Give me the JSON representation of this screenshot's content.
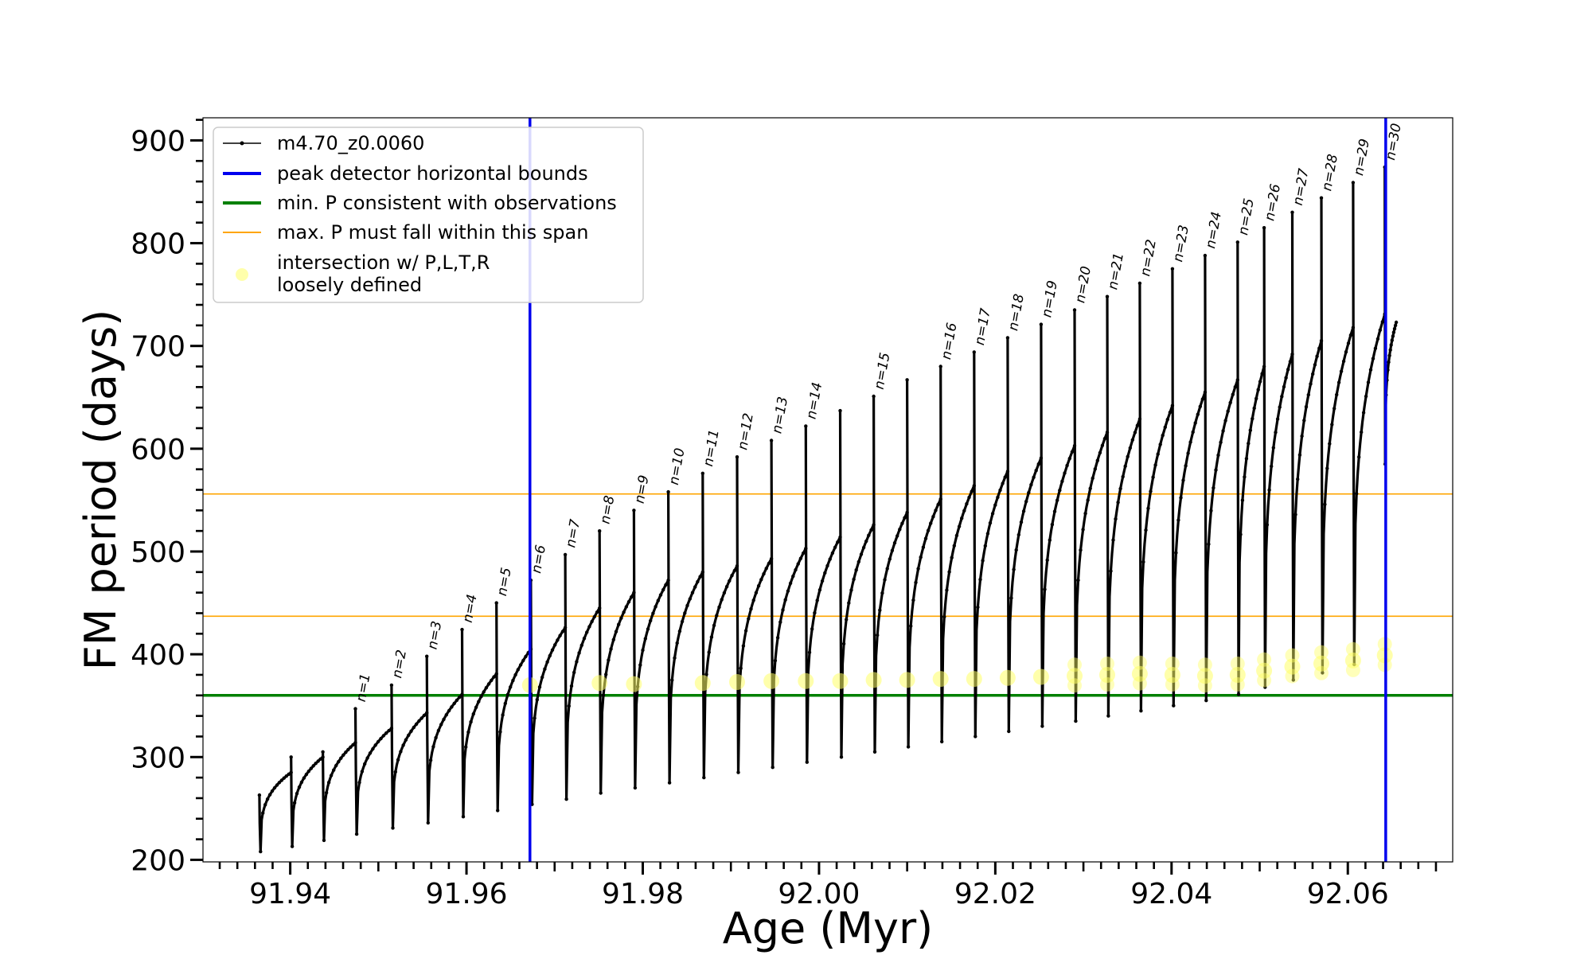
{
  "chart_data": {
    "type": "line",
    "xlabel": "Age (Myr)",
    "ylabel": "FM period (days)",
    "xlim": [
      91.9301,
      92.0719
    ],
    "ylim": [
      198,
      922
    ],
    "xticks": [
      91.94,
      91.96,
      91.98,
      92.0,
      92.02,
      92.04,
      92.06
    ],
    "xtick_labels": [
      "91.94",
      "91.96",
      "91.98",
      "92.00",
      "92.02",
      "92.04",
      "92.06"
    ],
    "yticks": [
      200,
      300,
      400,
      500,
      600,
      700,
      800,
      900
    ],
    "ytick_labels": [
      "200",
      "300",
      "400",
      "500",
      "600",
      "700",
      "800",
      "900"
    ],
    "grid": false,
    "legend_position": "top-left",
    "legend": [
      {
        "label": "m4.70_z0.0060",
        "color": "#000000",
        "kind": "line-marker"
      },
      {
        "label": "peak detector horizontal bounds",
        "color": "#0000ee",
        "kind": "line"
      },
      {
        "label": "min. P consistent with observations",
        "color": "#008000",
        "kind": "line"
      },
      {
        "label": "max. P must fall within this span",
        "color": "#ffa500",
        "kind": "line"
      },
      {
        "label": "intersection w/ P,L,T,R",
        "label2": "loosely defined",
        "color": "#ffff66",
        "kind": "marker"
      }
    ],
    "vertical_lines": {
      "color": "#0000ee",
      "x": [
        91.9672,
        92.0643
      ]
    },
    "horizontal_lines": [
      {
        "y": 360,
        "color": "#008000"
      },
      {
        "y": 437,
        "color": "#ffa500"
      },
      {
        "y": 556,
        "color": "#ffa500"
      }
    ],
    "series": [
      {
        "name": "m4.70_z0.0060",
        "color": "#000000",
        "pulses": [
          {
            "label": "",
            "t0": 91.9365,
            "t1": 91.9401,
            "spike": 263,
            "dip": 208,
            "plateau": 285
          },
          {
            "label": "",
            "t0": 91.9401,
            "t1": 91.9437,
            "spike": 300,
            "dip": 213,
            "plateau": 300
          },
          {
            "label": "",
            "t0": 91.9437,
            "t1": 91.9474,
            "spike": 305,
            "dip": 219,
            "plateau": 314
          },
          {
            "label": "n=1",
            "t0": 91.9474,
            "t1": 91.9515,
            "spike": 347,
            "dip": 225,
            "plateau": 328
          },
          {
            "label": "n=2",
            "t0": 91.9515,
            "t1": 91.9555,
            "spike": 370,
            "dip": 231,
            "plateau": 343
          },
          {
            "label": "n=3",
            "t0": 91.9555,
            "t1": 91.9595,
            "spike": 398,
            "dip": 236,
            "plateau": 361
          },
          {
            "label": "n=4",
            "t0": 91.9595,
            "t1": 91.9634,
            "spike": 424,
            "dip": 242,
            "plateau": 381
          },
          {
            "label": "n=5",
            "t0": 91.9634,
            "t1": 91.9673,
            "spike": 450,
            "dip": 248,
            "plateau": 405
          },
          {
            "label": "n=6",
            "t0": 91.9673,
            "t1": 91.9712,
            "spike": 472,
            "dip": 254,
            "plateau": 426
          },
          {
            "label": "n=7",
            "t0": 91.9712,
            "t1": 91.9751,
            "spike": 497,
            "dip": 259,
            "plateau": 445
          },
          {
            "label": "n=8",
            "t0": 91.9751,
            "t1": 91.979,
            "spike": 520,
            "dip": 265,
            "plateau": 460
          },
          {
            "label": "n=9",
            "t0": 91.979,
            "t1": 91.9829,
            "spike": 540,
            "dip": 270,
            "plateau": 472
          },
          {
            "label": "n=10",
            "t0": 91.9829,
            "t1": 91.9868,
            "spike": 558,
            "dip": 275,
            "plateau": 480
          },
          {
            "label": "n=11",
            "t0": 91.9868,
            "t1": 91.9907,
            "spike": 576,
            "dip": 280,
            "plateau": 486
          },
          {
            "label": "n=12",
            "t0": 91.9907,
            "t1": 91.9946,
            "spike": 592,
            "dip": 285,
            "plateau": 493
          },
          {
            "label": "n=13",
            "t0": 91.9946,
            "t1": 91.9985,
            "spike": 608,
            "dip": 290,
            "plateau": 503
          },
          {
            "label": "n=14",
            "t0": 91.9985,
            "t1": 92.0024,
            "spike": 622,
            "dip": 295,
            "plateau": 514
          },
          {
            "label": "",
            "t0": 92.0024,
            "t1": 92.0062,
            "spike": 637,
            "dip": 300,
            "plateau": 526
          },
          {
            "label": "n=15",
            "t0": 92.0062,
            "t1": 92.01,
            "spike": 651,
            "dip": 305,
            "plateau": 538
          },
          {
            "label": "",
            "t0": 92.01,
            "t1": 92.0138,
            "spike": 667,
            "dip": 310,
            "plateau": 551
          },
          {
            "label": "n=16",
            "t0": 92.0138,
            "t1": 92.0176,
            "spike": 680,
            "dip": 315,
            "plateau": 564
          },
          {
            "label": "n=17",
            "t0": 92.0176,
            "t1": 92.0214,
            "spike": 694,
            "dip": 320,
            "plateau": 578
          },
          {
            "label": "n=18",
            "t0": 92.0214,
            "t1": 92.0252,
            "spike": 708,
            "dip": 325,
            "plateau": 591
          },
          {
            "label": "n=19",
            "t0": 92.0252,
            "t1": 92.029,
            "spike": 721,
            "dip": 330,
            "plateau": 603
          },
          {
            "label": "n=20",
            "t0": 92.029,
            "t1": 92.0327,
            "spike": 735,
            "dip": 335,
            "plateau": 616
          },
          {
            "label": "n=21",
            "t0": 92.0327,
            "t1": 92.0364,
            "spike": 748,
            "dip": 340,
            "plateau": 629
          },
          {
            "label": "n=22",
            "t0": 92.0364,
            "t1": 92.0401,
            "spike": 761,
            "dip": 345,
            "plateau": 642
          },
          {
            "label": "n=23",
            "t0": 92.0401,
            "t1": 92.0438,
            "spike": 775,
            "dip": 350,
            "plateau": 655
          },
          {
            "label": "n=24",
            "t0": 92.0438,
            "t1": 92.0475,
            "spike": 788,
            "dip": 355,
            "plateau": 667
          },
          {
            "label": "n=25",
            "t0": 92.0475,
            "t1": 92.0505,
            "spike": 801,
            "dip": 361,
            "plateau": 680
          },
          {
            "label": "n=26",
            "t0": 92.0505,
            "t1": 92.0537,
            "spike": 815,
            "dip": 368,
            "plateau": 692
          },
          {
            "label": "n=27",
            "t0": 92.0537,
            "t1": 92.057,
            "spike": 830,
            "dip": 375,
            "plateau": 705
          },
          {
            "label": "n=28",
            "t0": 92.057,
            "t1": 92.0606,
            "spike": 844,
            "dip": 382,
            "plateau": 718
          },
          {
            "label": "n=29",
            "t0": 92.0606,
            "t1": 92.0642,
            "spike": 859,
            "dip": 390,
            "plateau": 731
          },
          {
            "label": "n=30",
            "t0": 92.0642,
            "t1": 92.0655,
            "spike": 874,
            "dip": 585,
            "plateau": 723
          }
        ]
      },
      {
        "name": "intersection w/ P,L,T,R loosely defined",
        "color": "#ffff66",
        "points": [
          [
            91.9672,
            370
          ],
          [
            91.9751,
            372
          ],
          [
            91.979,
            371
          ],
          [
            91.9868,
            372
          ],
          [
            91.9907,
            373
          ],
          [
            91.9946,
            374
          ],
          [
            91.9985,
            374
          ],
          [
            92.0024,
            374
          ],
          [
            92.0062,
            375
          ],
          [
            92.01,
            375
          ],
          [
            92.0138,
            376
          ],
          [
            92.0176,
            376
          ],
          [
            92.0214,
            377
          ],
          [
            92.0252,
            378
          ],
          [
            92.029,
            379
          ],
          [
            92.0327,
            380
          ],
          [
            92.0364,
            381
          ],
          [
            92.0401,
            380
          ],
          [
            92.0438,
            379
          ],
          [
            92.0475,
            380
          ],
          [
            92.0505,
            384
          ],
          [
            92.0537,
            388
          ],
          [
            92.057,
            391
          ],
          [
            92.0606,
            394
          ],
          [
            92.0642,
            399
          ]
        ]
      }
    ]
  }
}
